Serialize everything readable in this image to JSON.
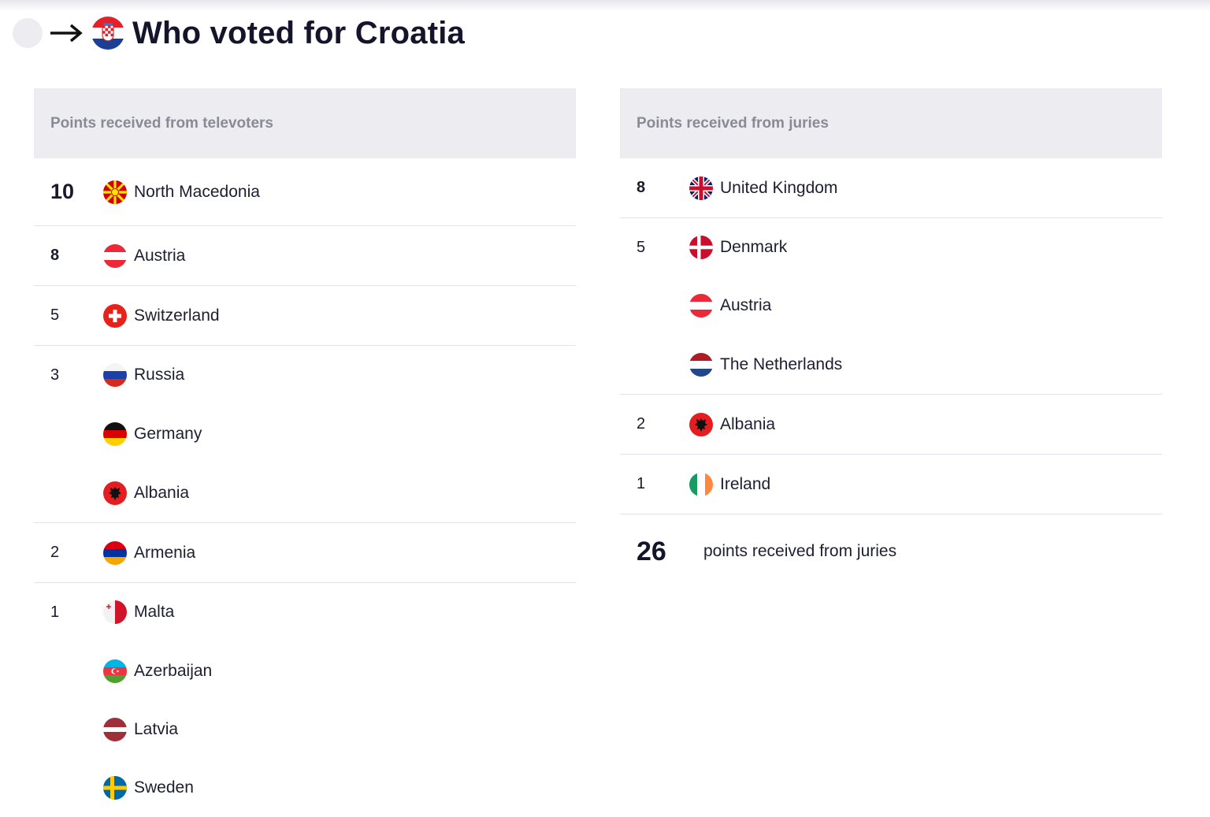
{
  "page": {
    "title": "Who voted for Croatia",
    "title_flag_icon": "croatia-flag-icon",
    "back_arrow_icon": "arrow-right-icon"
  },
  "televoters": {
    "header": "Points received from televoters",
    "rows": [
      {
        "points": "10",
        "country": "North Macedonia",
        "flag_icon": "north-macedonia-flag-icon"
      },
      {
        "points": "8",
        "country": "Austria",
        "flag_icon": "austria-flag-icon"
      },
      {
        "points": "5",
        "country": "Switzerland",
        "flag_icon": "switzerland-flag-icon"
      },
      {
        "points": "3",
        "country": "Russia",
        "flag_icon": "russia-flag-icon"
      },
      {
        "points": "",
        "country": "Germany",
        "flag_icon": "germany-flag-icon"
      },
      {
        "points": "",
        "country": "Albania",
        "flag_icon": "albania-flag-icon"
      },
      {
        "points": "2",
        "country": "Armenia",
        "flag_icon": "armenia-flag-icon"
      },
      {
        "points": "1",
        "country": "Malta",
        "flag_icon": "malta-flag-icon"
      },
      {
        "points": "",
        "country": "Azerbaijan",
        "flag_icon": "azerbaijan-flag-icon"
      },
      {
        "points": "",
        "country": "Latvia",
        "flag_icon": "latvia-flag-icon"
      },
      {
        "points": "",
        "country": "Sweden",
        "flag_icon": "sweden-flag-icon"
      }
    ]
  },
  "juries": {
    "header": "Points received from juries",
    "rows": [
      {
        "points": "8",
        "country": "United Kingdom",
        "flag_icon": "united-kingdom-flag-icon"
      },
      {
        "points": "5",
        "country": "Denmark",
        "flag_icon": "denmark-flag-icon"
      },
      {
        "points": "",
        "country": "Austria",
        "flag_icon": "austria-flag-icon"
      },
      {
        "points": "",
        "country": "The Netherlands",
        "flag_icon": "netherlands-flag-icon"
      },
      {
        "points": "2",
        "country": "Albania",
        "flag_icon": "albania-flag-icon"
      },
      {
        "points": "1",
        "country": "Ireland",
        "flag_icon": "ireland-flag-icon"
      }
    ],
    "total": {
      "value": "26",
      "label": "points received from juries"
    }
  },
  "colors": {
    "header_bg": "#ececf1",
    "header_text": "#8a8a96",
    "divider": "#e2e2e8",
    "title_text": "#14142b"
  }
}
